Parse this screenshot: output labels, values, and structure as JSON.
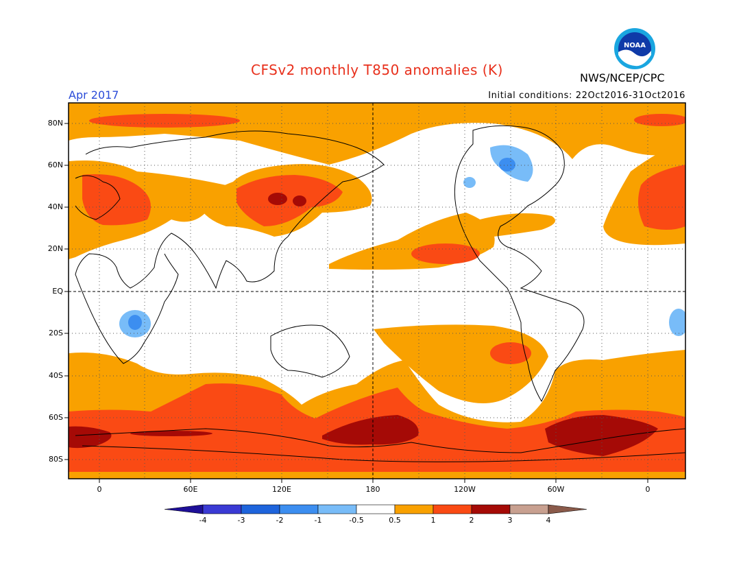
{
  "title": "CFSv2 monthly T850 anomalies (K)",
  "agency": "NWS/NCEP/CPC",
  "logo": {
    "icon": "noaa-logo-icon",
    "text": "NOAA"
  },
  "valid_month": "Apr 2017",
  "initial_conditions": "Initial conditions: 22Oct2016-31Oct2016",
  "colors": {
    "title": "#e8301c",
    "month": "#2a4bd8",
    "grid": "#555555"
  },
  "lat_labels": [
    "80N",
    "60N",
    "40N",
    "20N",
    "EQ",
    "20S",
    "40S",
    "60S",
    "80S"
  ],
  "lon_labels": [
    "0",
    "60E",
    "120E",
    "180",
    "120W",
    "60W",
    "0"
  ],
  "colorbar": {
    "labels": [
      "-4",
      "-3",
      "-2",
      "-1",
      "-0.5",
      "0.5",
      "1",
      "2",
      "3",
      "4"
    ],
    "colors": [
      "#1e0f98",
      "#3a3ad4",
      "#1e64dc",
      "#3c8ef0",
      "#78bcf8",
      "#ffffff",
      "#f9a100",
      "#fa4a14",
      "#a50a06",
      "#c8a090",
      "#8a5a4a"
    ]
  }
}
